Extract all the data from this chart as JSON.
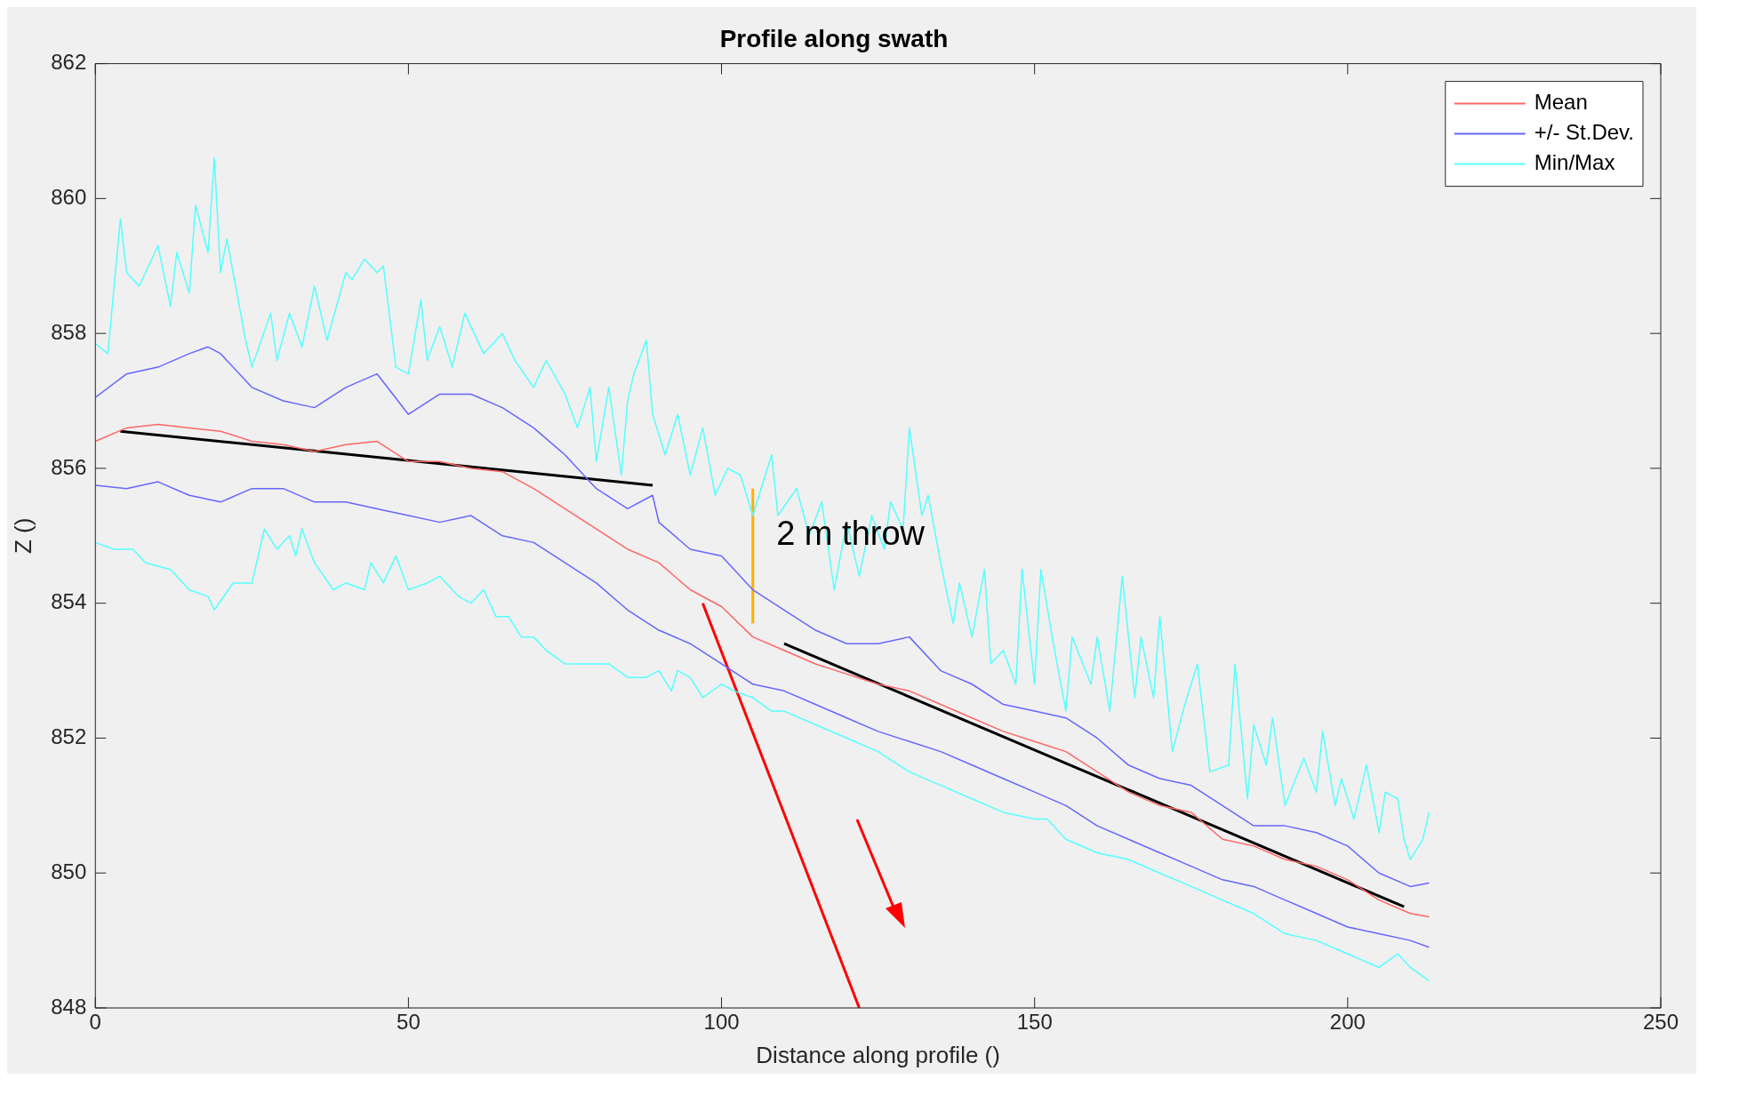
{
  "chart_data": {
    "type": "line",
    "title": "Profile along swath",
    "xlabel": "Distance along profile ()",
    "ylabel": "Z ()",
    "xlim": [
      0,
      250
    ],
    "xticks": [
      0,
      50,
      100,
      150,
      200,
      250
    ],
    "ylim": [
      848,
      862
    ],
    "yticks": [
      848,
      850,
      852,
      854,
      856,
      858,
      860,
      862
    ],
    "grid": false,
    "legend": "top right",
    "marker": "none",
    "series": [
      {
        "name": "Mean",
        "color": "#ff6666",
        "x": [
          0,
          5,
          10,
          15,
          20,
          25,
          30,
          35,
          40,
          45,
          50,
          55,
          60,
          65,
          70,
          75,
          80,
          85,
          90,
          95,
          100,
          105,
          110,
          115,
          120,
          125,
          130,
          135,
          140,
          145,
          150,
          155,
          160,
          165,
          170,
          175,
          180,
          185,
          190,
          195,
          200,
          205,
          210,
          213
        ],
        "values": [
          856.4,
          856.6,
          856.65,
          856.6,
          856.55,
          856.4,
          856.35,
          856.25,
          856.35,
          856.4,
          856.1,
          856.1,
          856.0,
          855.95,
          855.7,
          855.4,
          855.1,
          854.8,
          854.6,
          854.2,
          853.95,
          853.5,
          853.3,
          853.1,
          852.95,
          852.8,
          852.7,
          852.5,
          852.3,
          852.1,
          851.95,
          851.8,
          851.5,
          851.2,
          851.0,
          850.9,
          850.5,
          850.4,
          850.2,
          850.1,
          849.9,
          849.6,
          849.4,
          849.35
        ]
      },
      {
        "name": "+/- St.Dev.",
        "color": "#6666ff",
        "x": [
          0,
          5,
          10,
          15,
          18,
          20,
          25,
          30,
          35,
          40,
          45,
          50,
          55,
          60,
          65,
          70,
          75,
          80,
          85,
          89,
          90,
          95,
          100,
          105,
          110,
          115,
          120,
          125,
          130,
          135,
          140,
          145,
          150,
          155,
          160,
          165,
          170,
          175,
          180,
          185,
          190,
          195,
          200,
          205,
          210,
          213
        ],
        "values": [
          857.05,
          857.4,
          857.5,
          857.7,
          857.8,
          857.7,
          857.2,
          857.0,
          856.9,
          857.2,
          857.4,
          856.8,
          857.1,
          857.1,
          856.9,
          856.6,
          856.2,
          855.7,
          855.4,
          855.6,
          855.2,
          854.8,
          854.7,
          854.2,
          853.9,
          853.6,
          853.4,
          853.4,
          853.5,
          853.0,
          852.8,
          852.5,
          852.4,
          852.3,
          852.0,
          851.6,
          851.4,
          851.3,
          851.0,
          850.7,
          850.7,
          850.6,
          850.4,
          850.0,
          849.8,
          849.85
        ]
      },
      {
        "color": "#6666ff",
        "x": [
          0,
          5,
          10,
          15,
          20,
          25,
          30,
          35,
          40,
          45,
          50,
          55,
          60,
          65,
          70,
          75,
          80,
          85,
          90,
          95,
          100,
          105,
          110,
          115,
          120,
          125,
          130,
          135,
          140,
          145,
          150,
          155,
          160,
          165,
          170,
          175,
          180,
          185,
          190,
          195,
          200,
          205,
          210,
          213
        ],
        "values": [
          855.75,
          855.7,
          855.8,
          855.6,
          855.5,
          855.7,
          855.7,
          855.5,
          855.5,
          855.4,
          855.3,
          855.2,
          855.3,
          855.0,
          854.9,
          854.6,
          854.3,
          853.9,
          853.6,
          853.4,
          853.1,
          852.8,
          852.7,
          852.5,
          852.3,
          852.1,
          851.95,
          851.8,
          851.6,
          851.4,
          851.2,
          851.0,
          850.7,
          850.5,
          850.3,
          850.1,
          849.9,
          849.8,
          849.6,
          849.4,
          849.2,
          849.1,
          849.0,
          848.9
        ]
      },
      {
        "name": "Min/Max",
        "color": "#55ffff",
        "x": [
          0,
          2,
          4,
          5,
          7,
          10,
          12,
          13,
          15,
          16,
          18,
          19,
          20,
          21,
          24,
          25,
          28,
          29,
          31,
          33,
          35,
          37,
          40,
          41,
          43,
          45,
          46,
          48,
          50,
          52,
          53,
          55,
          57,
          59,
          62,
          65,
          67,
          70,
          72,
          75,
          77,
          79,
          80,
          82,
          84,
          85,
          86,
          88,
          89,
          91,
          93,
          95,
          97,
          99,
          101,
          103,
          105,
          108,
          109,
          112,
          114,
          116,
          118,
          120,
          122,
          124,
          126,
          127,
          129,
          130,
          132,
          133,
          135,
          137,
          138,
          140,
          142,
          143,
          145,
          147,
          148,
          150,
          151,
          153,
          155,
          156,
          159,
          160,
          162,
          164,
          166,
          167,
          169,
          170,
          172,
          174,
          176,
          178,
          181,
          182,
          184,
          185,
          187,
          188,
          190,
          193,
          195,
          196,
          198,
          199,
          201,
          203,
          205,
          206,
          208,
          209,
          210,
          212,
          213
        ],
        "values": [
          857.85,
          857.7,
          859.7,
          858.9,
          858.7,
          859.3,
          858.4,
          859.2,
          858.6,
          859.9,
          859.2,
          860.6,
          858.9,
          859.4,
          857.9,
          857.5,
          858.3,
          857.6,
          858.3,
          857.8,
          858.7,
          857.9,
          858.9,
          858.8,
          859.1,
          858.9,
          859.0,
          857.5,
          857.4,
          858.5,
          857.6,
          858.1,
          857.5,
          858.3,
          857.7,
          858.0,
          857.6,
          857.2,
          857.6,
          857.1,
          856.6,
          857.2,
          856.1,
          857.2,
          855.9,
          857.0,
          857.4,
          857.9,
          856.8,
          856.2,
          856.8,
          855.9,
          856.6,
          855.6,
          856.0,
          855.9,
          855.3,
          856.2,
          855.3,
          855.7,
          855.0,
          855.5,
          854.2,
          855.2,
          854.4,
          855.3,
          854.8,
          855.5,
          855.1,
          856.6,
          855.3,
          855.6,
          854.6,
          853.7,
          854.3,
          853.5,
          854.5,
          853.1,
          853.3,
          852.8,
          854.5,
          852.8,
          854.5,
          853.4,
          852.4,
          853.5,
          852.8,
          853.5,
          852.4,
          854.4,
          852.6,
          853.5,
          852.6,
          853.8,
          851.8,
          852.5,
          853.1,
          851.5,
          851.6,
          853.1,
          851.1,
          852.2,
          851.6,
          852.3,
          851.0,
          851.7,
          851.2,
          852.1,
          851.0,
          851.4,
          850.8,
          851.6,
          850.6,
          851.2,
          851.1,
          850.5,
          850.2,
          850.5,
          850.9
        ]
      },
      {
        "color": "#55ffff",
        "x": [
          0,
          3,
          6,
          8,
          12,
          15,
          18,
          19,
          22,
          25,
          27,
          29,
          31,
          32,
          33,
          35,
          38,
          40,
          43,
          44,
          46,
          48,
          50,
          53,
          55,
          58,
          60,
          62,
          64,
          66,
          68,
          70,
          72,
          75,
          80,
          82,
          85,
          88,
          90,
          92,
          93,
          95,
          97,
          100,
          102,
          105,
          108,
          110,
          115,
          120,
          125,
          130,
          135,
          140,
          145,
          150,
          152,
          155,
          160,
          165,
          170,
          175,
          180,
          185,
          190,
          195,
          200,
          205,
          208,
          210,
          213
        ],
        "values": [
          854.9,
          854.8,
          854.8,
          854.6,
          854.5,
          854.2,
          854.1,
          853.9,
          854.3,
          854.3,
          855.1,
          854.8,
          855.0,
          854.7,
          855.1,
          854.6,
          854.2,
          854.3,
          854.2,
          854.6,
          854.3,
          854.7,
          854.2,
          854.3,
          854.4,
          854.1,
          854.0,
          854.2,
          853.8,
          853.8,
          853.5,
          853.5,
          853.3,
          853.1,
          853.1,
          853.1,
          852.9,
          852.9,
          853.0,
          852.7,
          853.0,
          852.9,
          852.6,
          852.8,
          852.7,
          852.6,
          852.4,
          852.4,
          852.2,
          852.0,
          851.8,
          851.5,
          851.3,
          851.1,
          850.9,
          850.8,
          850.8,
          850.5,
          850.3,
          850.2,
          850.0,
          849.8,
          849.6,
          849.4,
          849.1,
          849.0,
          848.8,
          848.6,
          848.8,
          848.6,
          848.4
        ]
      },
      {
        "type": "line",
        "color": "#000000",
        "x": [
          4,
          89
        ],
        "values": [
          856.55,
          855.75
        ]
      },
      {
        "type": "line",
        "color": "#000000",
        "x": [
          110,
          209
        ],
        "values": [
          853.4,
          849.5
        ]
      },
      {
        "type": "line",
        "color": "#ffb000",
        "x": [
          105,
          105
        ],
        "values": [
          853.7,
          855.7
        ]
      },
      {
        "type": "line",
        "color": "#ff0000",
        "x": [
          97,
          122
        ],
        "values": [
          854.0,
          848.0
        ]
      }
    ],
    "annotations": [
      "2 m throw"
    ]
  }
}
